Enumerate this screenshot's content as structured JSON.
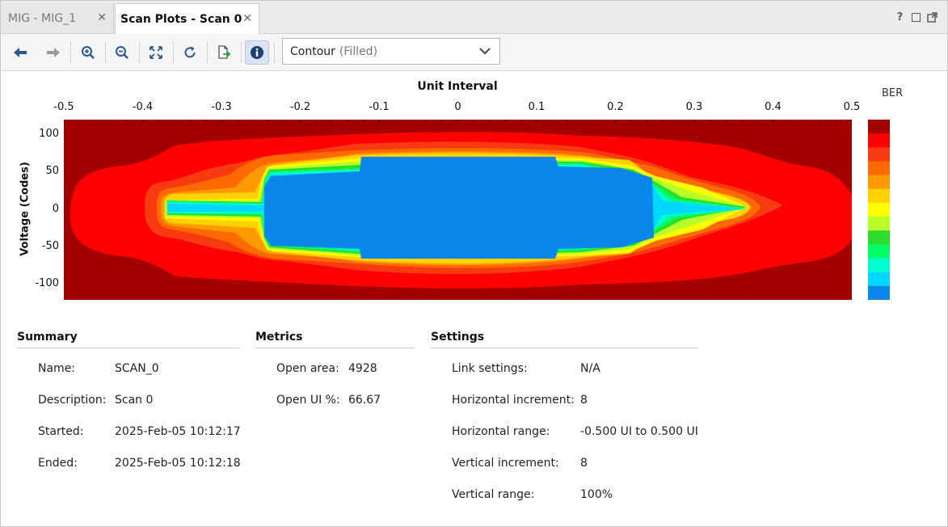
{
  "tabs": [
    {
      "label": "MIG - MIG_1",
      "active": false
    },
    {
      "label": "Scan Plots - Scan 0",
      "active": true
    }
  ],
  "window_controls": {
    "help": "?"
  },
  "toolbar": {
    "icons": [
      "arrow-left-icon",
      "arrow-right-icon",
      "zoom-in-icon",
      "zoom-out-icon",
      "fit-to-window-icon",
      "refresh-icon",
      "export-icon",
      "info-icon"
    ],
    "plot_type": {
      "label": "Contour",
      "sub": "(Filled)"
    }
  },
  "plot": {
    "title": "Unit Interval",
    "xlabel": "Unit Interval",
    "ylabel": "Voltage (Codes)",
    "x_ticks": [
      "-0.5",
      "-0.4",
      "-0.3",
      "-0.2",
      "-0.1",
      "0",
      "0.1",
      "0.2",
      "0.3",
      "0.4",
      "0.5"
    ],
    "y_ticks": [
      "100",
      "50",
      "0",
      "-50",
      "-100"
    ],
    "colorbar_title": "BER",
    "colors": [
      "#a30000",
      "#ff0000",
      "#f83a10",
      "#ff6a00",
      "#ff9a00",
      "#ffd200",
      "#ffff00",
      "#b8ff2a",
      "#2ddd2d",
      "#00ff66",
      "#00ffd0",
      "#00d8ff",
      "#0b86ea"
    ]
  },
  "chart_data": {
    "type": "heatmap",
    "xlabel": "Unit Interval",
    "ylabel": "Voltage (Codes)",
    "xlim": [
      -0.5,
      0.5
    ],
    "ylim": [
      -120,
      120
    ],
    "x_ticks": [
      -0.5,
      -0.4,
      -0.3,
      -0.2,
      -0.1,
      0,
      0.1,
      0.2,
      0.3,
      0.4,
      0.5
    ],
    "y_ticks": [
      100,
      50,
      0,
      -50,
      -100
    ],
    "colorbar": "BER"
  },
  "summary": {
    "heading": "Summary",
    "rows": [
      {
        "label": "Name:",
        "value": "SCAN_0"
      },
      {
        "label": "Description:",
        "value": "Scan 0"
      },
      {
        "label": "Started:",
        "value": "2025-Feb-05 10:12:17"
      },
      {
        "label": "Ended:",
        "value": "2025-Feb-05 10:12:18"
      }
    ]
  },
  "metrics": {
    "heading": "Metrics",
    "rows": [
      {
        "label": "Open area:",
        "value": "4928"
      },
      {
        "label": "Open UI %:",
        "value": "66.67"
      }
    ]
  },
  "settings": {
    "heading": "Settings",
    "rows": [
      {
        "label": "Link settings:",
        "value": "N/A"
      },
      {
        "label": "Horizontal increment:",
        "value": "8"
      },
      {
        "label": "Horizontal range:",
        "value": "-0.500 UI to 0.500 UI"
      },
      {
        "label": "Vertical increment:",
        "value": "8"
      },
      {
        "label": "Vertical range:",
        "value": "100%"
      }
    ]
  }
}
